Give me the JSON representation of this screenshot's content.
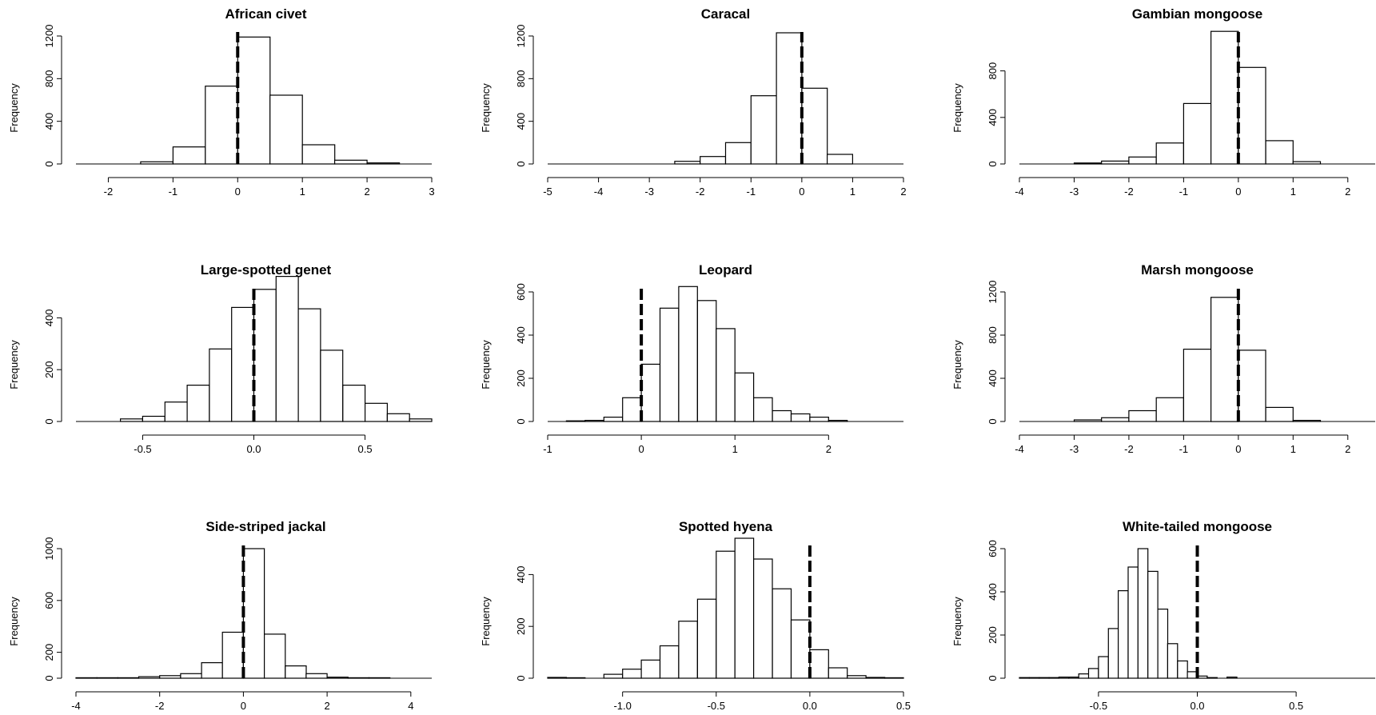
{
  "chart_data": [
    {
      "type": "bar",
      "title": "African civet",
      "ylabel": "Frequency",
      "xlabel": "",
      "xlim": [
        -2.5,
        3
      ],
      "xticks": [
        "-2",
        "-1",
        "0",
        "1",
        "2",
        "3"
      ],
      "ylim": [
        0,
        1200
      ],
      "yticks": [
        "0",
        "400",
        "800",
        "1200"
      ],
      "bin_width": 0.5,
      "bins": [
        [
          -1.5,
          20
        ],
        [
          -1.0,
          160
        ],
        [
          -0.5,
          730
        ],
        [
          0.0,
          1190
        ],
        [
          0.5,
          645
        ],
        [
          1.0,
          180
        ],
        [
          1.5,
          35
        ],
        [
          2.0,
          10
        ]
      ],
      "reference_line": 0,
      "grid": false
    },
    {
      "type": "bar",
      "title": "Caracal",
      "ylabel": "Frequency",
      "xlabel": "",
      "xlim": [
        -5,
        2
      ],
      "xticks": [
        "-5",
        "-4",
        "-3",
        "-2",
        "-1",
        "0",
        "1",
        "2"
      ],
      "ylim": [
        0,
        1200
      ],
      "yticks": [
        "0",
        "400",
        "800",
        "1200"
      ],
      "bin_width": 0.5,
      "bins": [
        [
          -2.5,
          25
        ],
        [
          -2.0,
          70
        ],
        [
          -1.5,
          200
        ],
        [
          -1.0,
          640
        ],
        [
          -0.5,
          1230
        ],
        [
          0.0,
          710
        ],
        [
          0.5,
          90
        ]
      ],
      "reference_line": 0,
      "grid": false
    },
    {
      "type": "bar",
      "title": "Gambian mongoose",
      "ylabel": "Frequency",
      "xlabel": "",
      "xlim": [
        -4,
        2.5
      ],
      "xticks": [
        "-4",
        "-3",
        "-2",
        "-1",
        "0",
        "1",
        "2"
      ],
      "ylim": [
        0,
        1100
      ],
      "yticks": [
        "0",
        "400",
        "800"
      ],
      "bin_width": 0.5,
      "bins": [
        [
          -3.0,
          8
        ],
        [
          -2.5,
          25
        ],
        [
          -2.0,
          60
        ],
        [
          -1.5,
          180
        ],
        [
          -1.0,
          520
        ],
        [
          -0.5,
          1140
        ],
        [
          0.0,
          830
        ],
        [
          0.5,
          200
        ],
        [
          1.0,
          20
        ]
      ],
      "reference_line": 0,
      "grid": false
    },
    {
      "type": "bar",
      "title": "Large-spotted genet",
      "ylabel": "Frequency",
      "xlabel": "",
      "xlim": [
        -0.8,
        0.8
      ],
      "xticks": [
        "-0.5",
        "0.0",
        "0.5"
      ],
      "ylim": [
        0,
        500
      ],
      "yticks": [
        "0",
        "200",
        "400"
      ],
      "bin_width": 0.1,
      "bins": [
        [
          -0.6,
          10
        ],
        [
          -0.5,
          20
        ],
        [
          -0.4,
          75
        ],
        [
          -0.3,
          140
        ],
        [
          -0.2,
          280
        ],
        [
          -0.1,
          440
        ],
        [
          0.0,
          510
        ],
        [
          0.1,
          560
        ],
        [
          0.2,
          435
        ],
        [
          0.3,
          275
        ],
        [
          0.4,
          140
        ],
        [
          0.5,
          70
        ],
        [
          0.6,
          30
        ],
        [
          0.7,
          10
        ]
      ],
      "reference_line": 0,
      "grid": false
    },
    {
      "type": "bar",
      "title": "Leopard",
      "ylabel": "Frequency",
      "xlabel": "",
      "xlim": [
        -1,
        2.8
      ],
      "xticks": [
        "-1",
        "0",
        "1",
        "2"
      ],
      "ylim": [
        0,
        600
      ],
      "yticks": [
        "0",
        "200",
        "400",
        "600"
      ],
      "bin_width": 0.2,
      "bins": [
        [
          -0.8,
          3
        ],
        [
          -0.6,
          5
        ],
        [
          -0.4,
          20
        ],
        [
          -0.2,
          110
        ],
        [
          0.0,
          265
        ],
        [
          0.2,
          525
        ],
        [
          0.4,
          625
        ],
        [
          0.6,
          560
        ],
        [
          0.8,
          430
        ],
        [
          1.0,
          225
        ],
        [
          1.2,
          110
        ],
        [
          1.4,
          50
        ],
        [
          1.6,
          35
        ],
        [
          1.8,
          20
        ],
        [
          2.0,
          5
        ]
      ],
      "reference_line": 0,
      "grid": false
    },
    {
      "type": "bar",
      "title": "Marsh mongoose",
      "ylabel": "Frequency",
      "xlabel": "",
      "xlim": [
        -4,
        2.5
      ],
      "xticks": [
        "-4",
        "-3",
        "-2",
        "-1",
        "0",
        "1",
        "2"
      ],
      "ylim": [
        0,
        1200
      ],
      "yticks": [
        "0",
        "400",
        "800",
        "1200"
      ],
      "bin_width": 0.5,
      "bins": [
        [
          -3.0,
          15
        ],
        [
          -2.5,
          35
        ],
        [
          -2.0,
          100
        ],
        [
          -1.5,
          220
        ],
        [
          -1.0,
          670
        ],
        [
          -0.5,
          1150
        ],
        [
          0.0,
          660
        ],
        [
          0.5,
          130
        ],
        [
          1.0,
          10
        ]
      ],
      "reference_line": 0,
      "grid": false
    },
    {
      "type": "bar",
      "title": "Side-striped jackal",
      "ylabel": "Frequency",
      "xlabel": "",
      "xlim": [
        -4,
        4.5
      ],
      "xticks": [
        "-4",
        "-2",
        "0",
        "2",
        "4"
      ],
      "ylim": [
        0,
        1000
      ],
      "yticks": [
        "0",
        "200",
        "600",
        "1000"
      ],
      "bin_width": 0.5,
      "bins": [
        [
          -4.0,
          4
        ],
        [
          -3.5,
          4
        ],
        [
          -3.0,
          4
        ],
        [
          -2.5,
          12
        ],
        [
          -2.0,
          20
        ],
        [
          -1.5,
          35
        ],
        [
          -1.0,
          120
        ],
        [
          -0.5,
          355
        ],
        [
          0.0,
          1000
        ],
        [
          0.5,
          340
        ],
        [
          1.0,
          95
        ],
        [
          1.5,
          35
        ],
        [
          2.0,
          8
        ],
        [
          2.5,
          4
        ],
        [
          3.0,
          4
        ]
      ],
      "reference_line": 0,
      "grid": false
    },
    {
      "type": "bar",
      "title": "Spotted hyena",
      "ylabel": "Frequency",
      "xlabel": "",
      "xlim": [
        -1.4,
        0.5
      ],
      "xticks": [
        "-1.0",
        "-0.5",
        "0.0",
        "0.5"
      ],
      "ylim": [
        0,
        500
      ],
      "yticks": [
        "0",
        "200",
        "400"
      ],
      "bin_width": 0.1,
      "bins": [
        [
          -1.4,
          3
        ],
        [
          -1.3,
          2
        ],
        [
          -1.2,
          0
        ],
        [
          -1.1,
          15
        ],
        [
          -1.0,
          35
        ],
        [
          -0.9,
          70
        ],
        [
          -0.8,
          125
        ],
        [
          -0.7,
          220
        ],
        [
          -0.6,
          305
        ],
        [
          -0.5,
          490
        ],
        [
          -0.4,
          540
        ],
        [
          -0.3,
          460
        ],
        [
          -0.2,
          345
        ],
        [
          -0.1,
          225
        ],
        [
          0.0,
          110
        ],
        [
          0.1,
          40
        ],
        [
          0.2,
          10
        ],
        [
          0.3,
          3
        ],
        [
          0.4,
          2
        ]
      ],
      "reference_line": 0,
      "grid": false
    },
    {
      "type": "bar",
      "title": "White-tailed mongoose",
      "ylabel": "Frequency",
      "xlabel": "",
      "xlim": [
        -0.9,
        0.9
      ],
      "xticks": [
        "-0.5",
        "0.0",
        "0.5"
      ],
      "ylim": [
        0,
        600
      ],
      "yticks": [
        "0",
        "200",
        "400",
        "600"
      ],
      "bin_width": 0.05,
      "bins": [
        [
          -0.9,
          3
        ],
        [
          -0.85,
          3
        ],
        [
          -0.8,
          3
        ],
        [
          -0.75,
          3
        ],
        [
          -0.7,
          5
        ],
        [
          -0.65,
          5
        ],
        [
          -0.6,
          20
        ],
        [
          -0.55,
          45
        ],
        [
          -0.5,
          100
        ],
        [
          -0.45,
          230
        ],
        [
          -0.4,
          405
        ],
        [
          -0.35,
          515
        ],
        [
          -0.3,
          600
        ],
        [
          -0.25,
          495
        ],
        [
          -0.2,
          320
        ],
        [
          -0.15,
          160
        ],
        [
          -0.1,
          80
        ],
        [
          -0.05,
          30
        ],
        [
          0.0,
          10
        ],
        [
          0.05,
          3
        ],
        [
          0.1,
          0
        ],
        [
          0.15,
          5
        ]
      ],
      "reference_line": 0,
      "grid": false
    }
  ]
}
